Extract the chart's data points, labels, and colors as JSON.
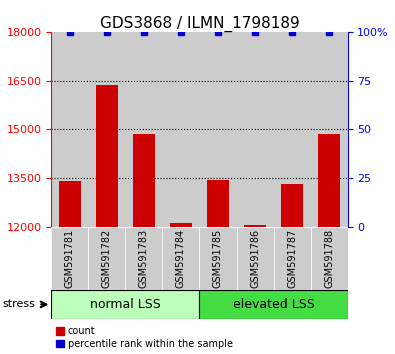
{
  "title": "GDS3868 / ILMN_1798189",
  "samples": [
    "GSM591781",
    "GSM591782",
    "GSM591783",
    "GSM591784",
    "GSM591785",
    "GSM591786",
    "GSM591787",
    "GSM591788"
  ],
  "counts": [
    13400,
    16350,
    14850,
    12100,
    13450,
    12050,
    13300,
    14850
  ],
  "percentiles": [
    100,
    100,
    100,
    100,
    100,
    100,
    100,
    100
  ],
  "ylim_left": [
    12000,
    18000
  ],
  "yticks_left": [
    12000,
    13500,
    15000,
    16500,
    18000
  ],
  "ylim_right": [
    0,
    100
  ],
  "yticks_right": [
    0,
    25,
    50,
    75,
    100
  ],
  "bar_color": "#cc0000",
  "dot_color": "#0000cc",
  "bar_width": 0.6,
  "group_labels": [
    "normal LSS",
    "elevated LSS"
  ],
  "group_ranges": [
    [
      0,
      4
    ],
    [
      4,
      8
    ]
  ],
  "group_colors_light": [
    "#bbffbb",
    "#55ee55"
  ],
  "group_colors_dark": [
    "#bbffbb",
    "#44dd44"
  ],
  "stress_label": "stress",
  "legend_count_label": "count",
  "legend_pct_label": "percentile rank within the sample",
  "sample_bg_color": "#cccccc",
  "title_fontsize": 11,
  "tick_fontsize": 8,
  "sample_fontsize": 7,
  "group_fontsize": 9
}
